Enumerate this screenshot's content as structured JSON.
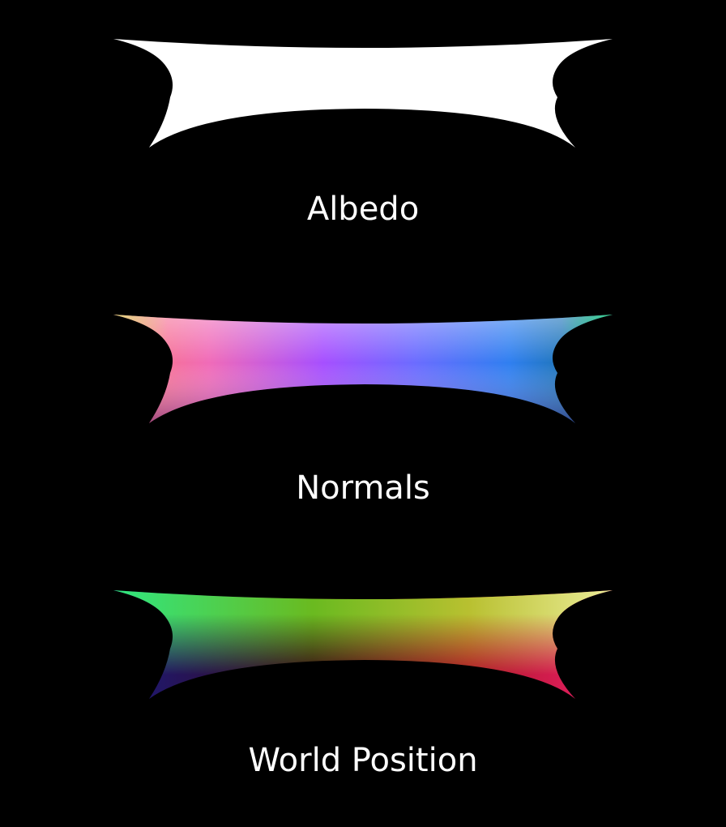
{
  "buffers": [
    {
      "label": "Albedo"
    },
    {
      "label": "Normals"
    },
    {
      "label": "World Position"
    }
  ]
}
